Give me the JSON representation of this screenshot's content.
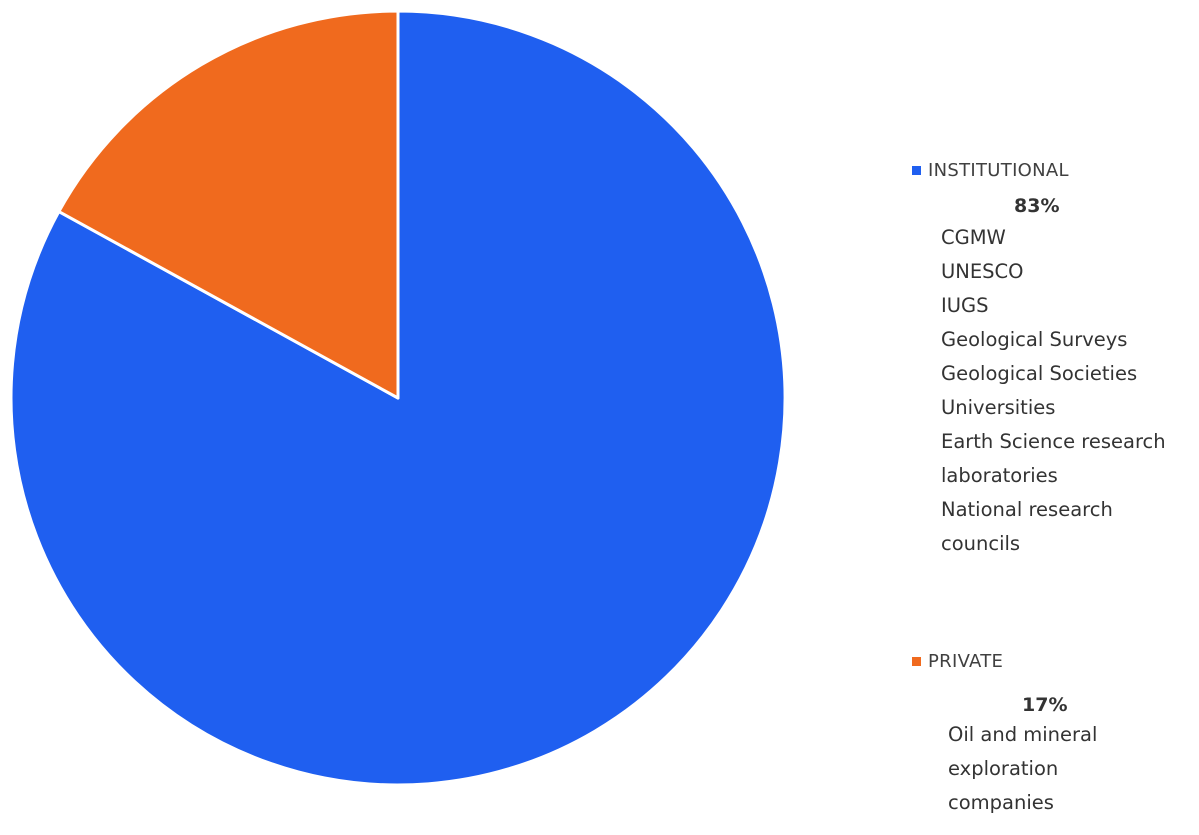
{
  "chart_data": {
    "type": "pie",
    "title": "",
    "start_angle_deg": 0,
    "direction": "clockwise",
    "slices": [
      {
        "name": "INSTITUTIONAL",
        "value": 83,
        "label": "83%",
        "color": "#1F5FF0",
        "members": [
          "CGMW",
          "UNESCO",
          "IUGS",
          "Geological Surveys",
          "Geological Societies",
          "Universities",
          "Earth Science research",
          "laboratories",
          "National research",
          "councils"
        ]
      },
      {
        "name": "PRIVATE",
        "value": 17,
        "label": "17%",
        "color": "#F06A1E",
        "members": [
          "Oil  and mineral",
          "exploration",
          "companies"
        ]
      }
    ],
    "legend_position": "right"
  }
}
